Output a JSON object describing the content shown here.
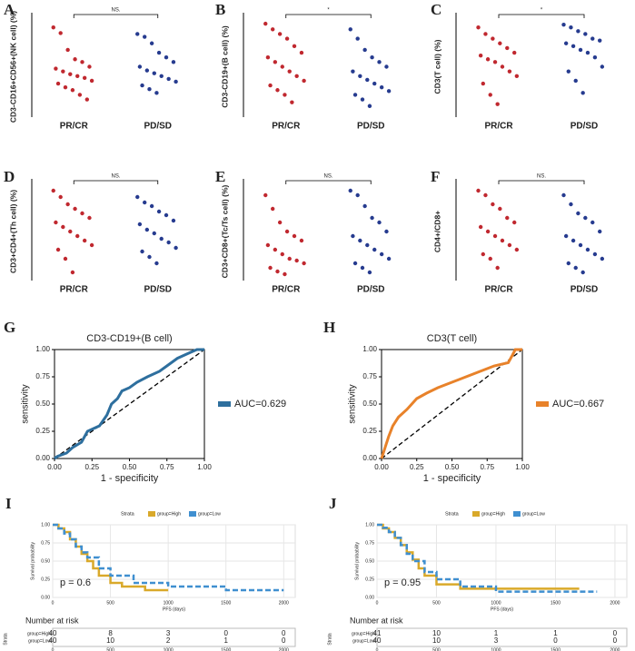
{
  "chart_data": [
    {
      "type": "strip",
      "label": "A",
      "ylabel": "CD3-CD16+CD56+(NK cell) (%)",
      "significance": "NS.",
      "categories": [
        "PR/CR",
        "PD/SD"
      ],
      "colors": [
        "#c0282f",
        "#263b8f"
      ],
      "ylim": [
        0,
        10
      ],
      "values": [
        [
          9.2,
          8.6,
          6.8,
          5.8,
          5.5,
          5.0,
          4.8,
          4.5,
          4.2,
          4.0,
          3.8,
          3.5,
          3.2,
          2.8,
          2.5,
          2.0,
          1.5
        ],
        [
          8.5,
          8.2,
          7.5,
          6.5,
          6.0,
          5.5,
          5.0,
          4.6,
          4.3,
          4.0,
          3.7,
          3.4,
          3.0,
          2.6,
          2.2
        ]
      ]
    },
    {
      "type": "strip",
      "label": "B",
      "ylabel": "CD3-CD19+(B cell) (%)",
      "significance": "*",
      "categories": [
        "PR/CR",
        "PD/SD"
      ],
      "colors": [
        "#c0282f",
        "#263b8f"
      ],
      "ylim": [
        0,
        10
      ],
      "values": [
        [
          9.6,
          9.0,
          8.5,
          8.0,
          7.2,
          6.5,
          6.0,
          5.5,
          5.0,
          4.5,
          4.0,
          3.5,
          3.0,
          2.5,
          2.0,
          1.2
        ],
        [
          9.0,
          8.0,
          6.8,
          6.0,
          5.5,
          5.0,
          4.5,
          4.0,
          3.6,
          3.2,
          2.8,
          2.4,
          2.0,
          1.5,
          0.8
        ]
      ]
    },
    {
      "type": "strip",
      "label": "C",
      "ylabel": "CD3(T cell) (%)",
      "significance": "*",
      "categories": [
        "PR/CR",
        "PD/SD"
      ],
      "colors": [
        "#c0282f",
        "#263b8f"
      ],
      "ylim": [
        0,
        10
      ],
      "values": [
        [
          9.2,
          8.5,
          8.0,
          7.5,
          7.0,
          6.5,
          6.2,
          5.8,
          5.5,
          5.0,
          4.5,
          4.0,
          3.2,
          2.0,
          1.0
        ],
        [
          9.5,
          9.2,
          8.8,
          8.5,
          8.0,
          7.8,
          7.5,
          7.2,
          6.8,
          6.5,
          6.0,
          5.0,
          4.5,
          3.5,
          2.2
        ]
      ]
    },
    {
      "type": "strip",
      "label": "D",
      "ylabel": "CD3+CD4+(Th cell) (%)",
      "significance": "NS.",
      "categories": [
        "PR/CR",
        "PD/SD"
      ],
      "colors": [
        "#c0282f",
        "#263b8f"
      ],
      "ylim": [
        0,
        10
      ],
      "values": [
        [
          9.5,
          8.8,
          8.0,
          7.5,
          7.0,
          6.5,
          6.0,
          5.5,
          5.0,
          4.5,
          4.0,
          3.5,
          3.0,
          2.0,
          0.5
        ],
        [
          8.8,
          8.2,
          7.8,
          7.2,
          6.8,
          6.2,
          5.8,
          5.2,
          4.8,
          4.2,
          3.8,
          3.2,
          2.8,
          2.2,
          1.5
        ]
      ]
    },
    {
      "type": "strip",
      "label": "E",
      "ylabel": "CD3+CD8+(Tc/Ts cell) (%)",
      "significance": "NS.",
      "categories": [
        "PR/CR",
        "PD/SD"
      ],
      "colors": [
        "#c0282f",
        "#263b8f"
      ],
      "ylim": [
        0,
        10
      ],
      "values": [
        [
          9.0,
          7.5,
          6.0,
          5.0,
          4.5,
          4.0,
          3.5,
          3.0,
          2.5,
          2.0,
          1.8,
          1.5,
          1.0,
          0.6,
          0.3
        ],
        [
          9.5,
          9.0,
          7.8,
          6.5,
          6.0,
          5.0,
          4.5,
          4.0,
          3.5,
          3.0,
          2.5,
          2.0,
          1.5,
          1.0,
          0.5
        ]
      ]
    },
    {
      "type": "strip",
      "label": "F",
      "ylabel": "CD4+/CD8+",
      "significance": "NS.",
      "categories": [
        "PR/CR",
        "PD/SD"
      ],
      "colors": [
        "#c0282f",
        "#263b8f"
      ],
      "ylim": [
        0,
        10
      ],
      "values": [
        [
          9.5,
          9.0,
          8.0,
          7.5,
          6.5,
          6.0,
          5.5,
          5.0,
          4.5,
          4.0,
          3.5,
          3.0,
          2.5,
          2.0,
          1.0
        ],
        [
          9.0,
          8.0,
          7.0,
          6.5,
          6.0,
          5.0,
          4.5,
          4.0,
          3.5,
          3.0,
          2.5,
          2.0,
          1.5,
          1.0,
          0.5
        ]
      ]
    },
    {
      "type": "roc",
      "label": "G",
      "title": "CD3-CD19+(B cell)",
      "xlabel": "1 - specificity",
      "ylabel": "sensitivity",
      "xlim": [
        0,
        1
      ],
      "ylim": [
        0,
        1
      ],
      "xticks": [
        {
          "value": 0,
          "label": "0.00"
        },
        {
          "value": 0.25,
          "label": "0.25"
        },
        {
          "value": 0.5,
          "label": "0.50"
        },
        {
          "value": 0.75,
          "label": "0.75"
        },
        {
          "value": 1,
          "label": "1.00"
        }
      ],
      "yticks": [
        {
          "value": 0,
          "label": "0.00"
        },
        {
          "value": 0.25,
          "label": "0.25"
        },
        {
          "value": 0.5,
          "label": "0.50"
        },
        {
          "value": 0.75,
          "label": "0.75"
        },
        {
          "value": 1,
          "label": "1.00"
        }
      ],
      "series": [
        {
          "name": "AUC=0.629",
          "color": "#2e6f9e",
          "x": [
            0,
            0.02,
            0.08,
            0.12,
            0.18,
            0.22,
            0.3,
            0.35,
            0.38,
            0.42,
            0.45,
            0.5,
            0.55,
            0.62,
            0.7,
            0.75,
            0.82,
            0.9,
            0.95,
            1
          ],
          "values": [
            0,
            0.02,
            0.05,
            0.1,
            0.15,
            0.25,
            0.3,
            0.4,
            0.5,
            0.55,
            0.62,
            0.65,
            0.7,
            0.75,
            0.8,
            0.85,
            0.92,
            0.97,
            1,
            1
          ]
        }
      ]
    },
    {
      "type": "roc",
      "label": "H",
      "title": "CD3(T cell)",
      "xlabel": "1 - specificity",
      "ylabel": "sensitivity",
      "xlim": [
        0,
        1
      ],
      "ylim": [
        0,
        1
      ],
      "xticks": [
        {
          "value": 0,
          "label": "0.00"
        },
        {
          "value": 0.25,
          "label": "0.25"
        },
        {
          "value": 0.5,
          "label": "0.50"
        },
        {
          "value": 0.75,
          "label": "0.75"
        },
        {
          "value": 1,
          "label": "1.00"
        }
      ],
      "yticks": [
        {
          "value": 0,
          "label": "0.00"
        },
        {
          "value": 0.25,
          "label": "0.25"
        },
        {
          "value": 0.5,
          "label": "0.50"
        },
        {
          "value": 0.75,
          "label": "0.75"
        },
        {
          "value": 1,
          "label": "1.00"
        }
      ],
      "series": [
        {
          "name": "AUC=0.667",
          "color": "#e8822a",
          "x": [
            0,
            0.02,
            0.05,
            0.08,
            0.12,
            0.18,
            0.25,
            0.32,
            0.4,
            0.5,
            0.6,
            0.7,
            0.8,
            0.9,
            0.93,
            0.95,
            1
          ],
          "values": [
            0,
            0.08,
            0.2,
            0.3,
            0.38,
            0.45,
            0.55,
            0.6,
            0.65,
            0.7,
            0.75,
            0.8,
            0.85,
            0.88,
            0.95,
            1,
            1
          ]
        }
      ]
    },
    {
      "type": "km",
      "label": "I",
      "legend_title": "Strata",
      "xlabel": "PFS (days)",
      "ylabel": "Survival probability",
      "annotation": "p = 0.6",
      "risk_title": "Number at risk",
      "risk_ylabel": "Strata",
      "xlim": [
        0,
        2100
      ],
      "xticks": [
        0,
        500,
        1000,
        1500,
        2000
      ],
      "ylim": [
        0,
        1
      ],
      "yticks": [
        {
          "value": 0,
          "label": "0.00"
        },
        {
          "value": 0.25,
          "label": "0.25"
        },
        {
          "value": 0.5,
          "label": "0.50"
        },
        {
          "value": 0.75,
          "label": "0.75"
        },
        {
          "value": 1,
          "label": "1.00"
        }
      ],
      "series": [
        {
          "name": "group=High",
          "color": "#d9a92a",
          "x": [
            0,
            50,
            100,
            150,
            200,
            250,
            300,
            350,
            400,
            500,
            600,
            800,
            1000
          ],
          "values": [
            1,
            0.95,
            0.9,
            0.8,
            0.7,
            0.6,
            0.5,
            0.4,
            0.3,
            0.2,
            0.15,
            0.1,
            0.1
          ],
          "risk": [
            40,
            8,
            3,
            0,
            0
          ]
        },
        {
          "name": "group=Low",
          "color": "#3f8fd0",
          "x": [
            0,
            50,
            100,
            150,
            200,
            250,
            300,
            400,
            500,
            700,
            1000,
            1500,
            2000
          ],
          "values": [
            1,
            0.95,
            0.88,
            0.8,
            0.7,
            0.62,
            0.55,
            0.4,
            0.3,
            0.2,
            0.15,
            0.1,
            0.1
          ],
          "risk": [
            40,
            10,
            2,
            1,
            0
          ]
        }
      ]
    },
    {
      "type": "km",
      "label": "J",
      "legend_title": "Strata",
      "xlabel": "PFS (days)",
      "ylabel": "Survival probability",
      "annotation": "p = 0.95",
      "risk_title": "Number at risk",
      "risk_ylabel": "Strata",
      "xlim": [
        0,
        2100
      ],
      "xticks": [
        0,
        500,
        1000,
        1500,
        2000
      ],
      "ylim": [
        0,
        1
      ],
      "yticks": [
        {
          "value": 0,
          "label": "0.00"
        },
        {
          "value": 0.25,
          "label": "0.25"
        },
        {
          "value": 0.5,
          "label": "0.50"
        },
        {
          "value": 0.75,
          "label": "0.75"
        },
        {
          "value": 1,
          "label": "1.00"
        }
      ],
      "series": [
        {
          "name": "group=High",
          "color": "#d9a92a",
          "x": [
            0,
            50,
            100,
            150,
            200,
            250,
            300,
            350,
            400,
            500,
            700,
            1000,
            1700
          ],
          "values": [
            1,
            0.95,
            0.9,
            0.82,
            0.72,
            0.62,
            0.52,
            0.4,
            0.3,
            0.18,
            0.12,
            0.12,
            0.12
          ],
          "risk": [
            41,
            10,
            1,
            1,
            0
          ]
        },
        {
          "name": "group=Low",
          "color": "#3f8fd0",
          "x": [
            0,
            50,
            100,
            150,
            200,
            250,
            300,
            400,
            500,
            700,
            1000,
            1500,
            1850
          ],
          "values": [
            1,
            0.96,
            0.9,
            0.82,
            0.72,
            0.6,
            0.5,
            0.35,
            0.25,
            0.15,
            0.08,
            0.08,
            0.08
          ],
          "risk": [
            40,
            10,
            3,
            0,
            0
          ]
        }
      ]
    }
  ]
}
